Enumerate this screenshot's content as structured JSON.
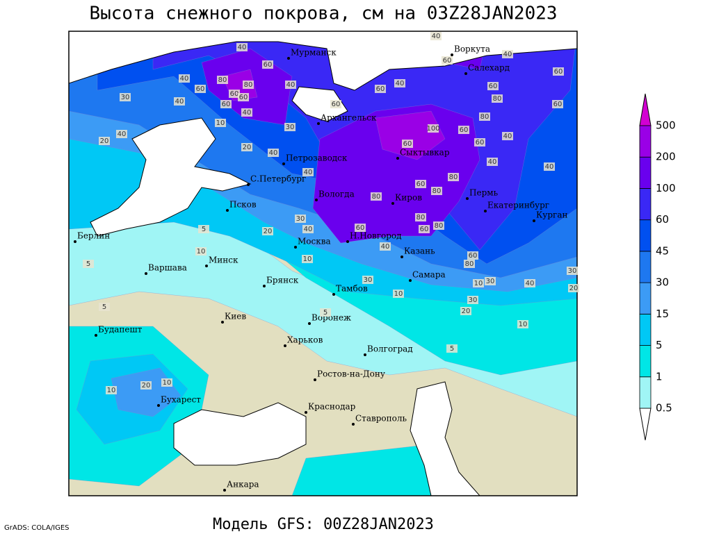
{
  "title": "Высота снежного покрова, см на 03Z28JAN2023",
  "footer": "Модель GFS: 00Z28JAN2023",
  "credit": "GrADS: COLA/IGES",
  "colorbar": {
    "levels": [
      0.5,
      1,
      5,
      15,
      30,
      45,
      60,
      100,
      200,
      500
    ],
    "colors": [
      "#a0f5f5",
      "#00e6e6",
      "#00c8f5",
      "#3c9bf5",
      "#1e78f0",
      "#0050f0",
      "#3a28f5",
      "#6a00ee",
      "#9a00e6"
    ],
    "over_color": "#d200d2",
    "under_color": "#ffffff"
  },
  "cities": [
    "Мурманск",
    "Воркута",
    "Салехард",
    "Архангельск",
    "Петрозаводск",
    "Сыктывкар",
    "С.Петербург",
    "Вологда",
    "Киров",
    "Пермь",
    "Екатеринбург",
    "Курган",
    "Псков",
    "Берлин",
    "Н.Новгород",
    "Москва",
    "Казань",
    "Минск",
    "Варшава",
    "Самара",
    "Брянск",
    "Тамбов",
    "Киев",
    "Воронеж",
    "Будапешт",
    "Харьков",
    "Волгоград",
    "Ростов-на-Дону",
    "Бухарест",
    "Краснодар",
    "Ставрополь",
    "Анкара"
  ],
  "contour_labels": [
    40,
    80,
    80,
    60,
    60,
    40,
    30,
    40,
    60,
    60,
    60,
    40,
    40,
    10,
    20,
    40,
    30,
    40,
    20,
    40,
    60,
    60,
    40,
    40,
    60,
    40,
    60,
    60,
    80,
    60,
    100,
    60,
    60,
    80,
    40,
    60,
    40,
    40,
    80,
    60,
    80,
    80,
    80,
    80,
    60,
    60,
    40,
    40,
    30,
    20,
    5,
    10,
    10,
    30,
    10,
    60,
    80,
    10,
    30,
    40,
    30,
    20,
    30,
    20,
    10,
    5,
    5,
    5,
    5,
    20,
    10,
    10
  ]
}
